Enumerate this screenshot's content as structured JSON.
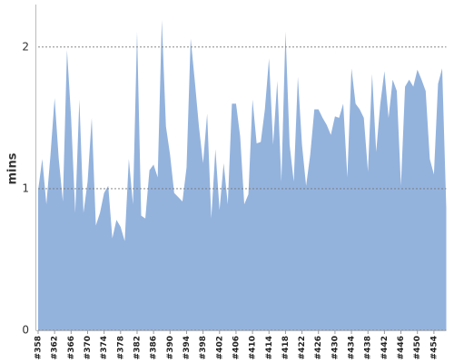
{
  "chart_data": {
    "type": "area",
    "y_label": "mins",
    "color": "#93b3dd",
    "grid": true,
    "ylim": [
      0,
      2.3
    ],
    "yticks": [
      0,
      1,
      2
    ],
    "categories": [
      "#358",
      null,
      null,
      null,
      "#362",
      null,
      null,
      null,
      "#366",
      null,
      null,
      null,
      "#370",
      null,
      null,
      null,
      "#374",
      null,
      null,
      null,
      "#378",
      null,
      null,
      null,
      "#382",
      null,
      null,
      null,
      "#386",
      null,
      null,
      null,
      "#390",
      null,
      null,
      null,
      "#394",
      null,
      null,
      null,
      "#398",
      null,
      null,
      null,
      "#402",
      null,
      null,
      null,
      "#406",
      null,
      null,
      null,
      "#410",
      null,
      null,
      null,
      "#414",
      null,
      null,
      null,
      "#418",
      null,
      null,
      null,
      "#422",
      null,
      null,
      null,
      "#426",
      null,
      null,
      null,
      "#430",
      null,
      null,
      null,
      "#434",
      null,
      null,
      null,
      "#438",
      null,
      null,
      null,
      "#442",
      null,
      null,
      null,
      "#446",
      null,
      null,
      null,
      "#450",
      null,
      null,
      null,
      "#454",
      null,
      null,
      null
    ],
    "values": [
      0.99,
      1.21,
      0.89,
      1.24,
      1.64,
      1.21,
      0.91,
      1.98,
      1.5,
      0.83,
      1.63,
      0.83,
      1.05,
      1.5,
      0.74,
      0.83,
      0.97,
      1.02,
      0.65,
      0.78,
      0.73,
      0.63,
      1.21,
      0.89,
      2.11,
      0.81,
      0.79,
      1.13,
      1.17,
      1.08,
      2.19,
      1.44,
      1.24,
      0.97,
      0.94,
      0.91,
      1.15,
      2.06,
      1.76,
      1.44,
      1.18,
      1.53,
      0.79,
      1.28,
      0.85,
      1.18,
      0.89,
      1.6,
      1.6,
      1.37,
      0.89,
      0.96,
      1.63,
      1.32,
      1.33,
      1.56,
      1.92,
      1.31,
      1.76,
      1.05,
      2.11,
      1.31,
      1.05,
      1.79,
      1.31,
      1.02,
      1.24,
      1.56,
      1.56,
      1.5,
      1.45,
      1.38,
      1.51,
      1.5,
      1.6,
      1.08,
      1.85,
      1.6,
      1.56,
      1.5,
      1.12,
      1.81,
      1.26,
      1.6,
      1.83,
      1.5,
      1.77,
      1.69,
      1.02,
      1.72,
      1.77,
      1.72,
      1.84,
      1.77,
      1.69,
      1.21,
      1.1,
      1.74,
      1.85,
      0.86
    ]
  }
}
